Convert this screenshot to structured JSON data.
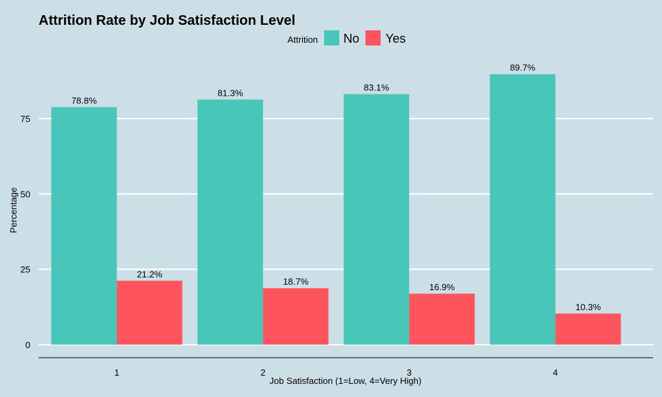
{
  "chart_data": {
    "type": "bar",
    "title": "Attrition Rate by Job Satisfaction Level",
    "xlabel": "Job Satisfaction (1=Low, 4=Very High)",
    "ylabel": "Percentage",
    "categories": [
      "1",
      "2",
      "3",
      "4"
    ],
    "ylim": [
      0,
      95
    ],
    "yticks": [
      0,
      25,
      50,
      75
    ],
    "legend": {
      "title": "Attrition",
      "position": "top"
    },
    "grid": "horizontal",
    "series": [
      {
        "name": "No",
        "color": "#47c6b9",
        "values": [
          78.8,
          81.3,
          83.1,
          89.7
        ],
        "labels": [
          "78.8%",
          "81.3%",
          "83.1%",
          "89.7%"
        ]
      },
      {
        "name": "Yes",
        "color": "#fe545d",
        "values": [
          21.2,
          18.7,
          16.9,
          10.3
        ],
        "labels": [
          "21.2%",
          "18.7%",
          "16.9%",
          "10.3%"
        ]
      }
    ]
  }
}
